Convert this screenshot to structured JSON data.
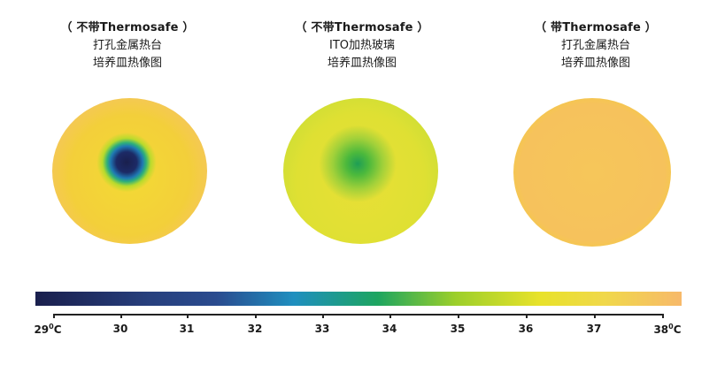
{
  "panels": [
    {
      "heading": "（ 不带Thermosafe ）",
      "line1": "打孔金属热台",
      "line2": "培养皿热像图"
    },
    {
      "heading": "（ 不带Thermosafe ）",
      "line1": "ITO加热玻璃",
      "line2": "培养皿热像图"
    },
    {
      "heading": "（ 带Thermosafe ）",
      "line1": "打孔金属热台",
      "line2": "培养皿热像图"
    }
  ],
  "scale": {
    "min_label": "29",
    "max_label": "38",
    "unit_deg": "0",
    "unit_c": "C",
    "mid_labels": [
      "30",
      "31",
      "32",
      "33",
      "34",
      "35",
      "36",
      "37"
    ],
    "colors": [
      "#1a1f4d",
      "#2a4b8f",
      "#1f8fbf",
      "#1ea560",
      "#9ccf2a",
      "#f0e22a",
      "#f7b96a"
    ]
  }
}
